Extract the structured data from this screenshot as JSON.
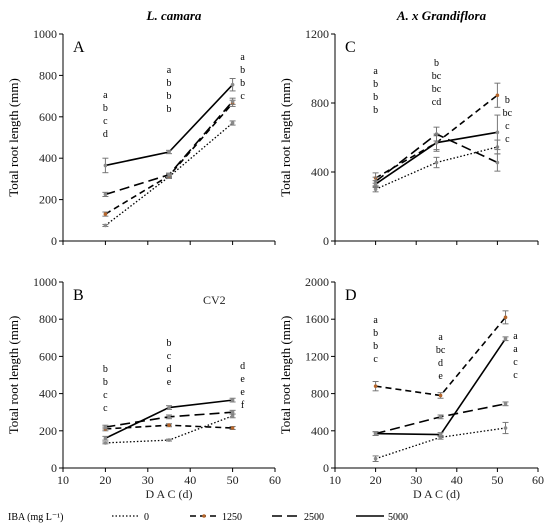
{
  "chart_data": [
    {
      "type": "line",
      "title": "L. camara",
      "panel_label": "A",
      "ylabel": "Total root length (mm)",
      "ylim": [
        0,
        1000
      ],
      "yticks": [
        0,
        200,
        400,
        600,
        800,
        1000
      ],
      "xlim": [
        10,
        60
      ],
      "xticks": [
        10,
        20,
        30,
        40,
        50,
        60
      ],
      "x": [
        20,
        35,
        50
      ],
      "series": [
        {
          "name": "0",
          "values": [
            75,
            310,
            570
          ],
          "errors": [
            5,
            8,
            10
          ]
        },
        {
          "name": "1250",
          "values": [
            130,
            315,
            665
          ],
          "errors": [
            10,
            8,
            15
          ]
        },
        {
          "name": "2500",
          "values": [
            225,
            320,
            675
          ],
          "errors": [
            10,
            8,
            15
          ]
        },
        {
          "name": "5000",
          "values": [
            365,
            430,
            755
          ],
          "errors": [
            35,
            8,
            30
          ]
        }
      ],
      "annotations": [
        {
          "x": 20,
          "letters": [
            "a",
            "b",
            "c",
            "d"
          ]
        },
        {
          "x": 35,
          "letters": [
            "a",
            "b",
            "b",
            "b"
          ]
        },
        {
          "x": 50,
          "letters": [
            "a",
            "b",
            "b",
            "c"
          ]
        }
      ]
    },
    {
      "type": "line",
      "title": "A. x Grandiflora",
      "panel_label": "C",
      "ylabel": "Total root length (mm)",
      "ylim": [
        0,
        1200
      ],
      "yticks": [
        0,
        400,
        800,
        1200
      ],
      "xlim": [
        10,
        60
      ],
      "xticks": [
        10,
        20,
        30,
        40,
        50,
        60
      ],
      "x": [
        20,
        35,
        50
      ],
      "series": [
        {
          "name": "0",
          "values": [
            300,
            455,
            545
          ],
          "errors": [
            15,
            30,
            40
          ]
        },
        {
          "name": "1250",
          "values": [
            365,
            570,
            845
          ],
          "errors": [
            30,
            40,
            70
          ]
        },
        {
          "name": "2500",
          "values": [
            345,
            620,
            455
          ],
          "errors": [
            25,
            40,
            50
          ]
        },
        {
          "name": "5000",
          "values": [
            330,
            570,
            630
          ],
          "errors": [
            20,
            50,
            100
          ]
        }
      ],
      "annotations": [
        {
          "x": 20,
          "letters": [
            "a",
            "b",
            "b",
            "b"
          ]
        },
        {
          "x": 35,
          "letters": [
            "b",
            "bc",
            "bc",
            "cd"
          ]
        },
        {
          "x": 50,
          "letters": [
            "b",
            "bc",
            "c",
            "c"
          ]
        }
      ]
    },
    {
      "type": "line",
      "panel_label": "B",
      "inset_text": "CV2",
      "ylabel": "Total root length (mm)",
      "ylim": [
        0,
        1000
      ],
      "yticks": [
        0,
        200,
        400,
        600,
        800,
        1000
      ],
      "xlim": [
        10,
        60
      ],
      "xticks": [
        10,
        20,
        30,
        40,
        50,
        60
      ],
      "xlabel": "D A C (d)",
      "x": [
        20,
        35,
        50
      ],
      "series": [
        {
          "name": "0",
          "values": [
            135,
            150,
            280
          ],
          "errors": [
            5,
            5,
            10
          ]
        },
        {
          "name": "1250",
          "values": [
            210,
            230,
            215
          ],
          "errors": [
            10,
            8,
            8
          ]
        },
        {
          "name": "2500",
          "values": [
            220,
            275,
            300
          ],
          "errors": [
            10,
            10,
            10
          ]
        },
        {
          "name": "5000",
          "values": [
            160,
            325,
            365
          ],
          "errors": [
            10,
            10,
            10
          ]
        }
      ],
      "annotations": [
        {
          "x": 20,
          "letters": [
            "b",
            "b",
            "c",
            "c"
          ]
        },
        {
          "x": 35,
          "letters": [
            "b",
            "c",
            "d",
            "e"
          ]
        },
        {
          "x": 50,
          "letters": [
            "d",
            "e",
            "e",
            "f"
          ]
        }
      ]
    },
    {
      "type": "line",
      "panel_label": "D",
      "ylabel": "Total root length (mm)",
      "ylim": [
        0,
        2000
      ],
      "yticks": [
        0,
        400,
        800,
        1200,
        1600,
        2000
      ],
      "xlim": [
        10,
        60
      ],
      "xticks": [
        10,
        20,
        30,
        40,
        50,
        60
      ],
      "xlabel": "D A C (d)",
      "x": [
        20,
        36,
        52
      ],
      "series": [
        {
          "name": "0",
          "values": [
            100,
            330,
            430
          ],
          "errors": [
            30,
            20,
            60
          ]
        },
        {
          "name": "1250",
          "values": [
            880,
            780,
            1620
          ],
          "errors": [
            50,
            30,
            70
          ]
        },
        {
          "name": "2500",
          "values": [
            370,
            550,
            690
          ],
          "errors": [
            20,
            20,
            20
          ]
        },
        {
          "name": "5000",
          "values": [
            370,
            360,
            1390
          ],
          "errors": [
            20,
            20,
            20
          ]
        }
      ],
      "annotations": [
        {
          "x": 20,
          "letters": [
            "a",
            "b",
            "b",
            "c"
          ]
        },
        {
          "x": 36,
          "letters": [
            "a",
            "bc",
            "d",
            "e"
          ]
        },
        {
          "x": 52,
          "letters": [
            "a",
            "a",
            "c",
            "c"
          ]
        }
      ]
    }
  ],
  "legend": {
    "title": "IBA (mg L⁻¹)",
    "entries": [
      "0",
      "1250",
      "2500",
      "5000"
    ]
  },
  "styles": {
    "0": {
      "color": "#000000",
      "dash": "1.5,2",
      "width": 1.3
    },
    "1250": {
      "color": "#000000",
      "dash": "6,4",
      "width": 1.6
    },
    "2500": {
      "color": "#000000",
      "dash": "10,5",
      "width": 1.6
    },
    "5000": {
      "color": "#000000",
      "dash": "",
      "width": 1.6
    },
    "marker_1250": "#b5652a",
    "marker_other": "#8a8a8a"
  }
}
